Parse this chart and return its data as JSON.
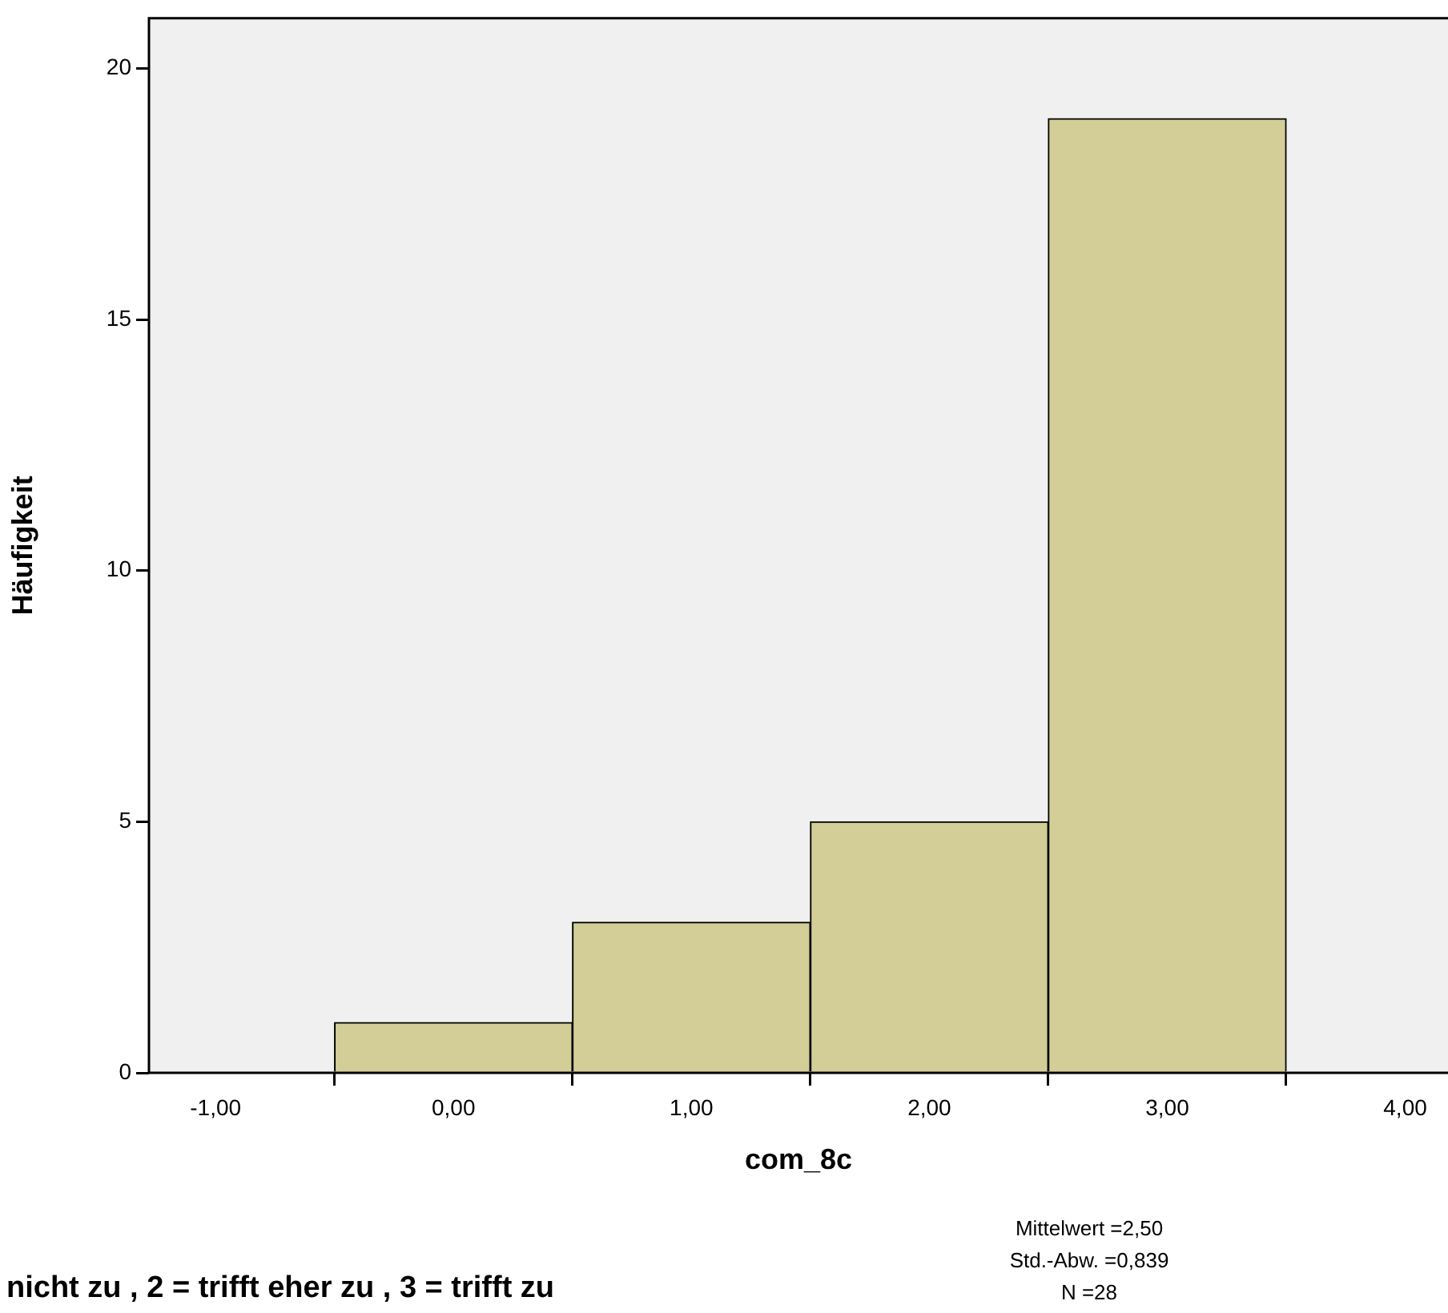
{
  "chart_data": {
    "type": "histogram",
    "xlabel": "com_8c",
    "ylabel": "Häufigkeit",
    "bins": [
      -0.5,
      0.5,
      1.5,
      2.5,
      3.5
    ],
    "values": [
      1,
      3,
      5,
      19
    ],
    "color": "#d3ce97",
    "xlim": [
      -1.28,
      4.18
    ],
    "xticks": [
      {
        "value": -1,
        "label": "-1,00"
      },
      {
        "value": 0,
        "label": "0,00"
      },
      {
        "value": 1,
        "label": "1,00"
      },
      {
        "value": 2,
        "label": "2,00"
      },
      {
        "value": 3,
        "label": "3,00"
      },
      {
        "value": 4,
        "label": "4,00"
      }
    ],
    "ylim": [
      0,
      21
    ],
    "yticks": [
      0,
      5,
      10,
      15,
      20
    ],
    "grid": false,
    "legend": false,
    "annotations": [
      "nicht zu , 2 = trifft eher zu , 3 = trifft zu",
      "Mittelwert =2,50",
      "Std.-Abw. =0,839",
      "N =28"
    ]
  }
}
